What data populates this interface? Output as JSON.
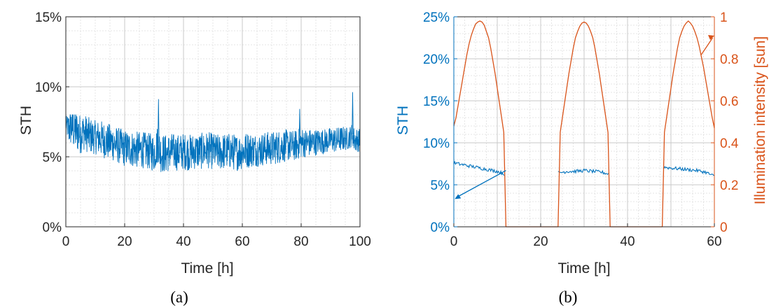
{
  "colors": {
    "sth": "#0072BD",
    "illum": "#D95319",
    "axis": "#262626",
    "grid_major": "#c8c8c8",
    "grid_minor": "#dedede"
  },
  "chart_data": [
    {
      "type": "line",
      "caption": "(a)",
      "xlabel": "Time [h]",
      "ylabel": "STH",
      "xlim": [
        0,
        100
      ],
      "ylim": [
        0,
        15
      ],
      "x_ticks": [
        0,
        20,
        40,
        60,
        80,
        100
      ],
      "x_tick_labels": [
        "0",
        "20",
        "40",
        "60",
        "80",
        "100"
      ],
      "y_ticks": [
        0,
        5,
        10,
        15
      ],
      "y_tick_labels": [
        "0%",
        "5%",
        "10%",
        "15%"
      ],
      "grid": "major+minor",
      "series": [
        {
          "x": [
            0,
            1,
            2,
            3,
            4,
            5,
            6,
            8,
            10,
            12,
            14,
            16,
            18,
            20,
            22,
            24,
            26,
            28,
            30,
            31.5,
            32,
            34,
            36,
            38,
            40,
            42,
            44,
            46,
            48,
            50,
            52,
            54,
            56,
            58,
            60,
            62,
            64,
            66,
            68,
            70,
            72,
            74,
            76,
            78,
            80,
            82,
            84,
            86,
            88,
            90,
            92,
            94,
            96,
            97.5,
            98,
            100
          ],
          "values": [
            7.3,
            7.0,
            7.2,
            6.9,
            6.8,
            6.6,
            6.8,
            6.5,
            6.4,
            6.3,
            6.1,
            6.0,
            5.8,
            5.6,
            5.6,
            5.5,
            5.5,
            5.4,
            5.3,
            6.0,
            5.3,
            5.2,
            5.4,
            5.3,
            5.4,
            5.3,
            5.4,
            5.4,
            5.5,
            5.4,
            5.3,
            5.4,
            5.4,
            5.3,
            5.4,
            5.5,
            5.5,
            5.5,
            5.6,
            5.6,
            5.7,
            5.8,
            5.8,
            5.8,
            6.0,
            6.0,
            6.0,
            6.1,
            6.1,
            6.2,
            6.2,
            6.3,
            6.3,
            6.6,
            6.2,
            6.2
          ],
          "spread": [
            0.5,
            1.2,
            1.5,
            1.6,
            1.5,
            1.4,
            1.3,
            1.3,
            1.2,
            1.3,
            1.3,
            1.3,
            1.3,
            1.3,
            1.3,
            1.3,
            1.3,
            1.3,
            1.4,
            1.4,
            1.4,
            1.4,
            1.3,
            1.3,
            1.3,
            1.3,
            1.3,
            1.3,
            1.3,
            1.3,
            1.3,
            1.3,
            1.3,
            1.3,
            1.3,
            1.3,
            1.2,
            1.2,
            1.2,
            1.2,
            1.2,
            1.2,
            1.1,
            1.1,
            1.1,
            1.0,
            1.0,
            0.9,
            0.9,
            0.9,
            0.9,
            0.9,
            0.8,
            0.8,
            0.9,
            0.8
          ],
          "peaks": [
            [
              31.5,
              9.1
            ],
            [
              79.5,
              8.4
            ],
            [
              97.5,
              9.6
            ],
            [
              1.5,
              7.9
            ]
          ]
        }
      ]
    },
    {
      "type": "line",
      "caption": "(b)",
      "xlabel": "Time [h]",
      "ylabel_left": "STH",
      "ylabel_right": "Illumination intensity [sun]",
      "xlim": [
        0,
        60
      ],
      "ylim_left": [
        0,
        25
      ],
      "ylim_right": [
        0,
        1
      ],
      "x_ticks": [
        0,
        20,
        40,
        60
      ],
      "x_tick_labels": [
        "0",
        "20",
        "40",
        "60"
      ],
      "y_ticks_left": [
        0,
        5,
        10,
        15,
        20,
        25
      ],
      "y_tick_labels_left": [
        "0%",
        "5%",
        "10%",
        "15%",
        "20%",
        "25%"
      ],
      "y_ticks_right": [
        0,
        0.2,
        0.4,
        0.6,
        0.8,
        1
      ],
      "y_tick_labels_right": [
        "0",
        "0.2",
        "0.4",
        "0.6",
        "0.8",
        "1"
      ],
      "grid": "major+minor",
      "series": [
        {
          "axis": "left",
          "segments": [
            {
              "x": [
                0,
                2,
                4,
                6,
                8,
                10,
                11.6
              ],
              "values": [
                7.6,
                7.4,
                7.2,
                7.0,
                6.8,
                6.6,
                6.3
              ]
            },
            {
              "x": [
                24,
                26,
                28,
                30,
                32,
                34,
                35.6
              ],
              "values": [
                6.4,
                6.6,
                6.6,
                6.7,
                6.6,
                6.5,
                6.3
              ]
            },
            {
              "x": [
                48.4,
                50,
                52,
                54,
                56,
                58,
                60
              ],
              "values": [
                7.1,
                7.0,
                6.9,
                6.8,
                6.7,
                6.5,
                6.0
              ]
            }
          ]
        },
        {
          "axis": "right",
          "segments": [
            {
              "x": [
                0,
                0.5,
                1,
                1.5,
                2,
                2.5,
                3,
                3.5,
                4,
                4.5,
                5,
                5.5,
                6,
                6.5,
                7,
                7.5,
                8,
                8.5,
                9,
                9.5,
                10,
                10.5,
                11,
                11.5,
                12
              ],
              "values": [
                0.48,
                0.52,
                0.58,
                0.64,
                0.7,
                0.76,
                0.82,
                0.87,
                0.91,
                0.94,
                0.965,
                0.975,
                0.98,
                0.975,
                0.96,
                0.93,
                0.9,
                0.85,
                0.79,
                0.73,
                0.66,
                0.59,
                0.52,
                0.45,
                0.0
              ]
            },
            {
              "x": [
                24,
                24.5,
                25,
                25.5,
                26,
                26.5,
                27,
                27.5,
                28,
                28.5,
                29,
                29.5,
                30,
                30.5,
                31,
                31.5,
                32,
                32.5,
                33,
                33.5,
                34,
                34.5,
                35,
                35.5,
                36
              ],
              "values": [
                0.0,
                0.45,
                0.52,
                0.59,
                0.66,
                0.73,
                0.79,
                0.85,
                0.9,
                0.93,
                0.955,
                0.97,
                0.975,
                0.97,
                0.955,
                0.93,
                0.9,
                0.85,
                0.79,
                0.73,
                0.66,
                0.59,
                0.52,
                0.45,
                0.0
              ]
            },
            {
              "x": [
                48,
                48.5,
                49,
                49.5,
                50,
                50.5,
                51,
                51.5,
                52,
                52.5,
                53,
                53.5,
                54,
                54.5,
                55,
                55.5,
                56,
                56.5,
                57,
                57.5,
                58,
                58.5,
                59,
                59.5,
                60
              ],
              "values": [
                0.0,
                0.45,
                0.52,
                0.59,
                0.66,
                0.73,
                0.79,
                0.85,
                0.9,
                0.93,
                0.955,
                0.97,
                0.98,
                0.97,
                0.955,
                0.93,
                0.9,
                0.86,
                0.81,
                0.76,
                0.7,
                0.64,
                0.58,
                0.52,
                0.47
              ]
            },
            {
              "x": [
                12,
                24
              ],
              "values": [
                0,
                0
              ]
            },
            {
              "x": [
                36,
                48
              ],
              "values": [
                0,
                0
              ]
            }
          ]
        }
      ]
    }
  ]
}
